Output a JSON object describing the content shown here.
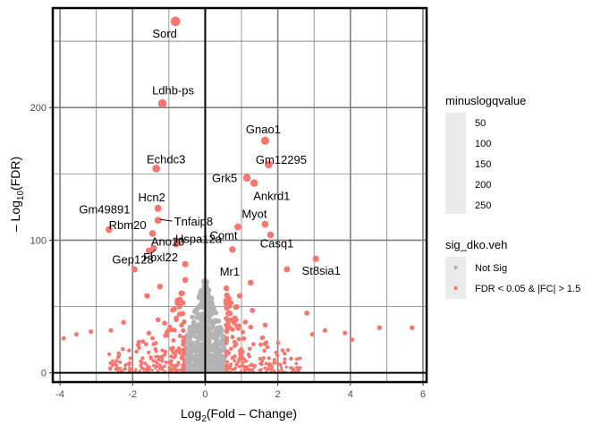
{
  "chart_data": {
    "type": "scatter",
    "title": "",
    "xlim": [
      -4.2,
      6.1
    ],
    "ylim": [
      -7,
      275
    ],
    "x_ticks": [
      -4,
      -2,
      0,
      2,
      4,
      6
    ],
    "y_ticks": [
      0,
      100,
      200
    ],
    "x_tick_labels": [
      "-4",
      "-2",
      "0",
      "2",
      "4",
      "6"
    ],
    "y_tick_labels": [
      "0",
      "100",
      "200"
    ],
    "grid": true,
    "reference_lines": {
      "x": 0,
      "y": 0
    },
    "xlabel": {
      "base": "Log",
      "sub": "2",
      "rest": "(Fold – Change)"
    },
    "ylabel": {
      "pre": "– Log",
      "sub": "10",
      "rest": "(FDR)"
    },
    "legend_size": {
      "title": "minuslogqvalue",
      "entries": [
        {
          "label": "50",
          "value": 50
        },
        {
          "label": "100",
          "value": 100
        },
        {
          "label": "150",
          "value": 150
        },
        {
          "label": "200",
          "value": 200
        },
        {
          "label": "250",
          "value": 250
        }
      ]
    },
    "legend_color": {
      "title": "sig_dko.veh",
      "entries": [
        {
          "label": "Not Sig",
          "color": "#b3b3b3"
        },
        {
          "label": "FDR < 0.05 & |FC| > 1.5",
          "color": "#f8766d"
        }
      ]
    },
    "legend_position": "right",
    "colors": {
      "sig": "#f8766d",
      "notsig": "#b3b3b3"
    },
    "labeled_points": [
      {
        "label": "Sord",
        "x": -0.82,
        "y": 265
      },
      {
        "label": "Ldhb-ps",
        "x": -1.18,
        "y": 203
      },
      {
        "label": "Echdc3",
        "x": -1.35,
        "y": 154
      },
      {
        "label": "Hcn2",
        "x": -1.3,
        "y": 124
      },
      {
        "label": "Rbm20",
        "x": -1.45,
        "y": 105
      },
      {
        "label": "Tnfaip8",
        "x": -1.3,
        "y": 115
      },
      {
        "label": "Hspa12a",
        "x": -0.75,
        "y": 98
      },
      {
        "label": "Ano10",
        "x": -1.42,
        "y": 94
      },
      {
        "label": "Gm49891",
        "x": -2.65,
        "y": 108
      },
      {
        "label": "Fbxl22",
        "x": -0.8,
        "y": 97
      },
      {
        "label": "Gep128",
        "x": -1.55,
        "y": 92
      },
      {
        "label": "Gnao1",
        "x": 1.65,
        "y": 175
      },
      {
        "label": "Gm12295",
        "x": 1.75,
        "y": 157
      },
      {
        "label": "Grk5",
        "x": 1.15,
        "y": 147
      },
      {
        "label": "Ankrd1",
        "x": 1.35,
        "y": 143
      },
      {
        "label": "Myot",
        "x": 1.65,
        "y": 112
      },
      {
        "label": "Comt",
        "x": 0.9,
        "y": 110
      },
      {
        "label": "Casq1",
        "x": 1.8,
        "y": 104
      },
      {
        "label": "Mr1",
        "x": 0.75,
        "y": 93
      },
      {
        "label": "St8sia1",
        "x": 3.05,
        "y": 86
      }
    ],
    "other_significant_points": [
      {
        "x": -0.55,
        "y": 82
      },
      {
        "x": 2.25,
        "y": 78
      },
      {
        "x": -1.95,
        "y": 78
      },
      {
        "x": -0.55,
        "y": 70
      },
      {
        "x": 1.25,
        "y": 68
      },
      {
        "x": -1.25,
        "y": 65
      },
      {
        "x": -1.6,
        "y": 58
      },
      {
        "x": 0.95,
        "y": 58
      },
      {
        "x": -0.85,
        "y": 48
      },
      {
        "x": 1.3,
        "y": 47
      },
      {
        "x": 2.8,
        "y": 45
      },
      {
        "x": -1.3,
        "y": 40
      },
      {
        "x": -2.25,
        "y": 38
      },
      {
        "x": 1.65,
        "y": 36
      },
      {
        "x": -0.65,
        "y": 36
      },
      {
        "x": 3.3,
        "y": 32
      },
      {
        "x": 2.95,
        "y": 29
      },
      {
        "x": -1.1,
        "y": 28
      },
      {
        "x": 0.75,
        "y": 27
      },
      {
        "x": 4.8,
        "y": 34
      },
      {
        "x": 5.7,
        "y": 34
      },
      {
        "x": -3.55,
        "y": 29
      },
      {
        "x": -3.15,
        "y": 31
      },
      {
        "x": -3.9,
        "y": 26
      },
      {
        "x": 4.05,
        "y": 25
      },
      {
        "x": 3.85,
        "y": 30
      },
      {
        "x": -2.6,
        "y": 32
      }
    ]
  }
}
